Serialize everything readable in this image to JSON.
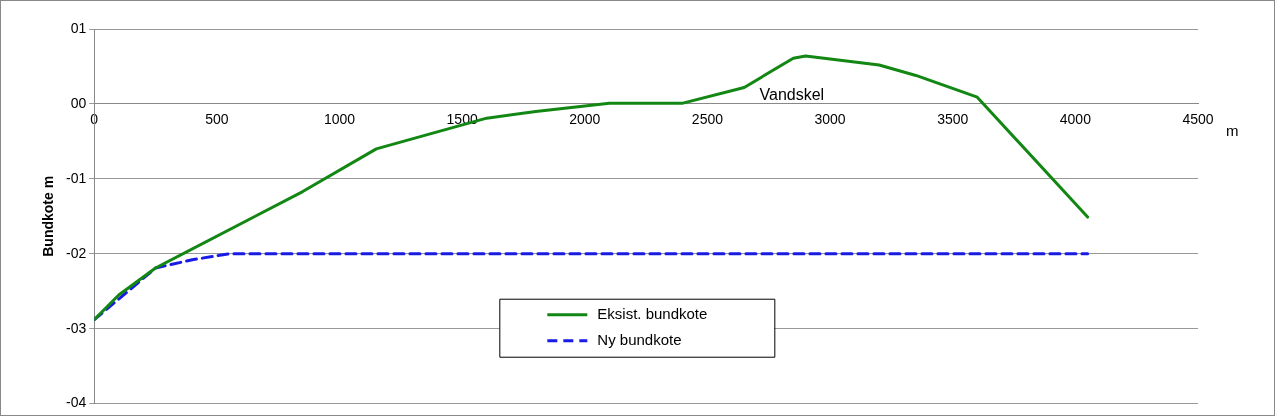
{
  "chart_data": {
    "type": "line",
    "xlabel": "m",
    "ylabel": "Bundkote m",
    "xlim": [
      0,
      4500
    ],
    "xticks": [
      0,
      500,
      1000,
      1500,
      2000,
      2500,
      3000,
      3500,
      4000,
      4500
    ],
    "ylim": [
      -4,
      1
    ],
    "yticks": [
      {
        "value": 1,
        "label": "01"
      },
      {
        "value": 0,
        "label": "00"
      },
      {
        "value": -1,
        "label": "-01"
      },
      {
        "value": -2,
        "label": "-02"
      },
      {
        "value": -3,
        "label": "-03"
      },
      {
        "value": -4,
        "label": "-04"
      }
    ],
    "grid": "y",
    "legend": "bottom",
    "marker": "none",
    "series": [
      {
        "name": "Eksist. bundkote",
        "color": "#138713",
        "line_style": "solid",
        "x": [
          0,
          100,
          250,
          850,
          1150,
          1600,
          1800,
          2100,
          2400,
          2650,
          2850,
          2900,
          3200,
          3350,
          3600,
          4050
        ],
        "values": [
          -2.88,
          -2.55,
          -2.19,
          -1.17,
          -0.6,
          -0.19,
          -0.1,
          0.01,
          0.01,
          0.22,
          0.61,
          0.64,
          0.52,
          0.38,
          0.09,
          -1.51
        ]
      },
      {
        "name": "Ny bundkote",
        "color": "#1a1ae6",
        "line_style": "dashed",
        "x": [
          0,
          250,
          400,
          550,
          1000,
          2000,
          3000,
          4050
        ],
        "values": [
          -2.88,
          -2.19,
          -2.08,
          -2.0,
          -2.0,
          -2.0,
          -2.0,
          -2.0
        ]
      }
    ],
    "annotations": [
      "Vandskel"
    ]
  }
}
